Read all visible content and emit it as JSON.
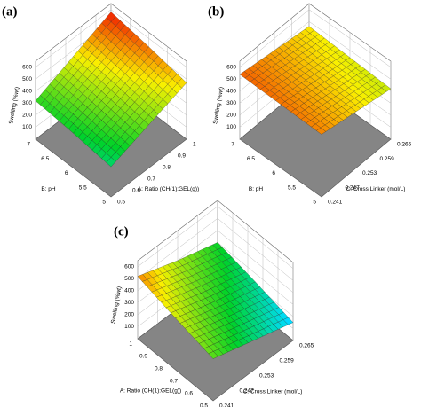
{
  "chart_data": [
    {
      "type": "surface",
      "label": "(a)",
      "x_label": "A: Ratio (CH(1):GEL(g))",
      "y_label": "B: pH",
      "z_label": "Swelling (%wt)",
      "x": [
        0.5,
        0.75,
        1
      ],
      "y": [
        5,
        6,
        7
      ],
      "z": [
        [
          250,
          360,
          470
        ],
        [
          290,
          410,
          530
        ],
        [
          320,
          450,
          580
        ]
      ],
      "xlim": [
        0.5,
        1
      ],
      "ylim": [
        5,
        7
      ],
      "zlim": [
        0,
        650
      ],
      "xticks": [
        0.5,
        0.6,
        0.7,
        0.8,
        0.9,
        1
      ],
      "yticks": [
        5,
        5.5,
        6,
        6.5,
        7
      ],
      "zticks": [
        100,
        200,
        300,
        400,
        500,
        600
      ]
    },
    {
      "type": "surface",
      "label": "(b)",
      "x_label": "C: Cross Linker (mol/L)",
      "y_label": "B: pH",
      "z_label": "Swelling (%wt)",
      "x": [
        0.241,
        0.253,
        0.265
      ],
      "y": [
        5,
        6,
        7
      ],
      "z": [
        [
          520,
          470,
          420
        ],
        [
          530,
          485,
          440
        ],
        [
          540,
          500,
          460
        ]
      ],
      "xlim": [
        0.241,
        0.265
      ],
      "ylim": [
        5,
        7
      ],
      "zlim": [
        0,
        650
      ],
      "xticks": [
        0.241,
        0.247,
        0.253,
        0.259,
        0.265
      ],
      "yticks": [
        5,
        5.5,
        6,
        6.5,
        7
      ],
      "zticks": [
        100,
        200,
        300,
        400,
        500,
        600
      ]
    },
    {
      "type": "surface",
      "label": "(c)",
      "x_label": "C: Cross Linker (mol/L)",
      "y_label": "A: Ratio (CH(1):GEL(g))",
      "z_label": "Swelling (%wt)",
      "x": [
        0.241,
        0.253,
        0.265
      ],
      "y": [
        0.5,
        0.75,
        1
      ],
      "z": [
        [
          350,
          250,
          150
        ],
        [
          430,
          320,
          230
        ],
        [
          520,
          400,
          300
        ]
      ],
      "xlim": [
        0.241,
        0.265
      ],
      "ylim": [
        0.5,
        1
      ],
      "zlim": [
        0,
        650
      ],
      "xticks": [
        0.241,
        0.247,
        0.253,
        0.259,
        0.265
      ],
      "yticks": [
        0.5,
        0.6,
        0.7,
        0.8,
        0.9,
        1
      ],
      "zticks": [
        100,
        200,
        300,
        400,
        500,
        600
      ]
    }
  ]
}
